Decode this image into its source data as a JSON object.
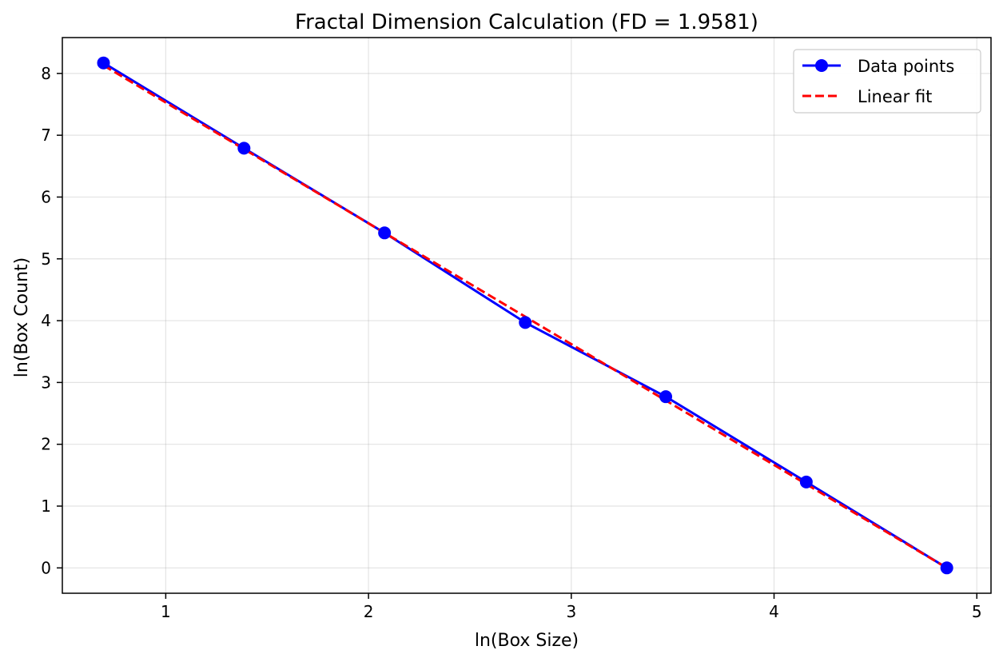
{
  "chart_data": {
    "type": "line",
    "title": "Fractal Dimension Calculation (FD = 1.9581)",
    "xlabel": "ln(Box Size)",
    "ylabel": "ln(Box Count)",
    "xlim": [
      0.49,
      5.07
    ],
    "ylim": [
      -0.41,
      8.58
    ],
    "xticks": [
      1,
      2,
      3,
      4,
      5
    ],
    "yticks": [
      0,
      1,
      2,
      3,
      4,
      5,
      6,
      7,
      8
    ],
    "grid": true,
    "legend_position": "top-right",
    "series": [
      {
        "name": "Data points",
        "style": "solid line with circle markers",
        "color": "#0000ff",
        "x": [
          0.693,
          1.386,
          2.079,
          2.773,
          3.466,
          4.159,
          4.852
        ],
        "y": [
          8.17,
          6.79,
          5.42,
          3.97,
          2.77,
          1.39,
          0.0
        ]
      },
      {
        "name": "Linear fit",
        "style": "dashed line",
        "color": "#ff0000",
        "x": [
          0.693,
          4.852
        ],
        "y": [
          8.13,
          0.0
        ]
      }
    ]
  }
}
